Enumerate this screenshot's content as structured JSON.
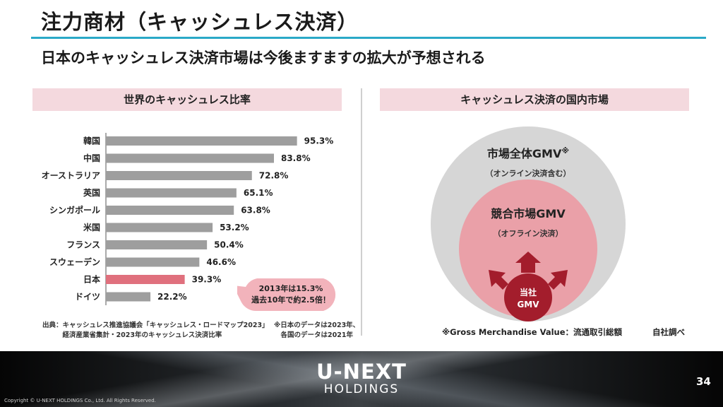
{
  "slide": {
    "title": "注力商材（キャッシュレス決済）",
    "subtitle": "日本のキャッシュレス決済市場は今後ますますの拡大が予想される",
    "left_panel_title": "世界のキャッシュレス比率",
    "right_panel_title": "キャッシュレス決済の国内市場"
  },
  "chart_data": {
    "type": "bar",
    "orientation": "horizontal",
    "title": "世界のキャッシュレス比率",
    "categories": [
      "韓国",
      "中国",
      "オーストラリア",
      "英国",
      "シンガポール",
      "米国",
      "フランス",
      "スウェーデン",
      "日本",
      "ドイツ"
    ],
    "values": [
      95.3,
      83.8,
      72.8,
      65.1,
      63.8,
      53.2,
      50.4,
      46.6,
      39.3,
      22.2
    ],
    "value_labels": [
      "95.3%",
      "83.8%",
      "72.8%",
      "65.1%",
      "63.8%",
      "53.2%",
      "50.4%",
      "46.6%",
      "39.3%",
      "22.2%"
    ],
    "highlight_category": "日本",
    "bar_color": "#9e9e9e",
    "highlight_color": "#e0707d",
    "highlight_label_color": "#c0283a",
    "xlim": [
      0,
      100
    ],
    "grid": false
  },
  "callout": {
    "line1": "2013年は15.3%",
    "line2": "過去10年で約2.5倍！"
  },
  "notes": {
    "source": "出典：キャッシュレス推進協議会「キャッシュレス・ロードマップ2023」\n　　　経済産業省集計・2023年のキャッシュレス決済比率",
    "japan": "※日本のデータは2023年、\n　各国のデータは2021年",
    "gmv": "※Gross Merchandise Value：流通取引総額",
    "own_research": "自社調べ"
  },
  "market": {
    "outer_title": "市場全体GMV",
    "outer_mark": "※",
    "outer_sub": "（オンライン決済含む）",
    "inner_title": "競合市場GMV",
    "inner_sub": "（オフライン決済）",
    "company_line1": "当社",
    "company_line2": "GMV",
    "colors": {
      "outer": "#d6d6d6",
      "inner": "#eaa0a8",
      "company": "#a31d2c",
      "arrow": "#a31d2c"
    }
  },
  "footer": {
    "logo_main": "U-NEXT",
    "logo_sub": "HOLDINGS",
    "page_number": "34",
    "copyright": "Copyright © U-NEXT HOLDINGS Co., Ltd. All Rights Reserved."
  }
}
